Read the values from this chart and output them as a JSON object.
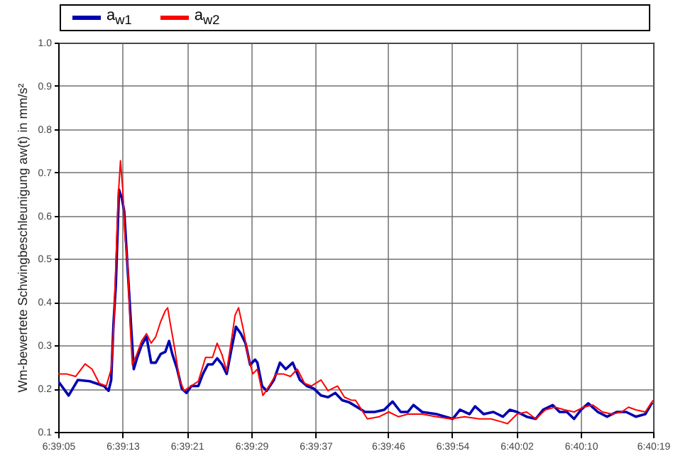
{
  "chart_data": {
    "type": "line",
    "ylabel": "Wm-bewertete Schwingbeschleunigung aw(t) in mm/s²",
    "legend": "top",
    "grid": true,
    "line_style": "solid",
    "marker": "none",
    "xlim": [
      6.65139,
      6.67194
    ],
    "ylim": [
      0.1,
      1.0
    ],
    "yticks": [
      0.1,
      0.2,
      0.3,
      0.4,
      0.5,
      0.6,
      0.7,
      0.8,
      0.9,
      {
        "value": 1.0,
        "label": "1.0"
      }
    ],
    "xticks": [
      {
        "value": 6.65139,
        "label": "6:39:05"
      },
      {
        "value": 6.65361,
        "label": "6:39:13"
      },
      {
        "value": 6.65583,
        "label": "6:39:21"
      },
      {
        "value": 6.65806,
        "label": "6:39:29"
      },
      {
        "value": 6.66028,
        "label": "6:39:37"
      },
      {
        "value": 6.66278,
        "label": "6:39:46"
      },
      {
        "value": 6.665,
        "label": "6:39:54"
      },
      {
        "value": 6.66722,
        "label": "6:40:02"
      },
      {
        "value": 6.66944,
        "label": "6:40:10"
      },
      {
        "value": 6.67194,
        "label": "6:40:19"
      }
    ],
    "series": [
      {
        "name": "a$_{w1}$",
        "color": "#0000b0",
        "x": [
          6.65139,
          6.65175,
          6.65207,
          6.65248,
          6.65297,
          6.65313,
          6.65322,
          6.6533,
          6.65338,
          6.65349,
          6.65359,
          6.65367,
          6.65375,
          6.65384,
          6.65392,
          6.654,
          6.65411,
          6.65427,
          6.65444,
          6.6546,
          6.65476,
          6.65493,
          6.65509,
          6.65522,
          6.65533,
          6.6555,
          6.65566,
          6.65582,
          6.65599,
          6.65623,
          6.65639,
          6.65656,
          6.65672,
          6.65688,
          6.65705,
          6.65721,
          6.65737,
          6.65753,
          6.6577,
          6.65786,
          6.65802,
          6.65819,
          6.65827,
          6.65843,
          6.65859,
          6.65884,
          6.65905,
          6.65925,
          6.65949,
          6.65974,
          6.65998,
          6.66022,
          6.66047,
          6.66071,
          6.66096,
          6.6612,
          6.66145,
          6.66199,
          6.66232,
          6.66265,
          6.66294,
          6.66322,
          6.66347,
          6.66366,
          6.66396,
          6.66445,
          6.66502,
          6.66527,
          6.6656,
          6.66579,
          6.66609,
          6.66642,
          6.66675,
          6.66699,
          6.66724,
          6.66757,
          6.66789,
          6.66814,
          6.66847,
          6.66871,
          6.66896,
          6.66921,
          6.66945,
          6.6697,
          6.67003,
          6.67035,
          6.67068,
          6.67101,
          6.67134,
          6.67167,
          6.67191
        ],
        "values": [
          0.217,
          0.184,
          0.22,
          0.217,
          0.206,
          0.195,
          0.22,
          0.35,
          0.44,
          0.66,
          0.64,
          0.61,
          0.52,
          0.42,
          0.33,
          0.245,
          0.27,
          0.3,
          0.32,
          0.26,
          0.26,
          0.28,
          0.285,
          0.31,
          0.28,
          0.245,
          0.2,
          0.19,
          0.206,
          0.206,
          0.234,
          0.256,
          0.256,
          0.27,
          0.256,
          0.234,
          0.29,
          0.343,
          0.327,
          0.305,
          0.255,
          0.267,
          0.26,
          0.206,
          0.195,
          0.22,
          0.26,
          0.245,
          0.26,
          0.22,
          0.206,
          0.2,
          0.184,
          0.18,
          0.19,
          0.173,
          0.168,
          0.146,
          0.146,
          0.151,
          0.17,
          0.146,
          0.146,
          0.162,
          0.146,
          0.141,
          0.13,
          0.151,
          0.141,
          0.159,
          0.141,
          0.146,
          0.135,
          0.151,
          0.146,
          0.135,
          0.13,
          0.151,
          0.162,
          0.146,
          0.146,
          0.13,
          0.151,
          0.166,
          0.146,
          0.135,
          0.146,
          0.146,
          0.135,
          0.141,
          0.168
        ]
      },
      {
        "name": "a$_{w2}$",
        "color": "#ff0000",
        "x": [
          6.65139,
          6.65167,
          6.65199,
          6.65232,
          6.65256,
          6.65281,
          6.65305,
          6.65322,
          6.6533,
          6.65338,
          6.65346,
          6.65354,
          6.65362,
          6.6537,
          6.65379,
          6.65387,
          6.65395,
          6.65411,
          6.65427,
          6.65444,
          6.6546,
          6.65476,
          6.65493,
          6.65509,
          6.65517,
          6.65525,
          6.65542,
          6.65558,
          6.65574,
          6.65599,
          6.65623,
          6.65648,
          6.65672,
          6.65688,
          6.65705,
          6.65721,
          6.65737,
          6.6575,
          6.65762,
          6.65778,
          6.65794,
          6.65811,
          6.65827,
          6.65846,
          6.65868,
          6.65892,
          6.65916,
          6.65941,
          6.65965,
          6.6599,
          6.66014,
          6.66047,
          6.66071,
          6.66104,
          6.66128,
          6.66153,
          6.66166,
          6.66207,
          6.66248,
          6.66281,
          6.66314,
          6.66347,
          6.66396,
          6.66445,
          6.66494,
          6.66543,
          6.66593,
          6.66634,
          6.66666,
          6.66691,
          6.66724,
          6.66757,
          6.66789,
          6.66822,
          6.66855,
          6.66888,
          6.66921,
          6.66953,
          6.66986,
          6.67019,
          6.67052,
          6.67085,
          6.67109,
          6.67134,
          6.67167,
          6.67194
        ],
        "values": [
          0.234,
          0.234,
          0.228,
          0.257,
          0.245,
          0.212,
          0.206,
          0.245,
          0.33,
          0.485,
          0.64,
          0.727,
          0.66,
          0.55,
          0.485,
          0.355,
          0.255,
          0.28,
          0.31,
          0.327,
          0.305,
          0.32,
          0.355,
          0.38,
          0.387,
          0.355,
          0.29,
          0.22,
          0.195,
          0.206,
          0.217,
          0.272,
          0.272,
          0.305,
          0.278,
          0.24,
          0.31,
          0.37,
          0.387,
          0.338,
          0.278,
          0.234,
          0.245,
          0.184,
          0.206,
          0.234,
          0.234,
          0.228,
          0.245,
          0.212,
          0.206,
          0.22,
          0.195,
          0.206,
          0.18,
          0.173,
          0.173,
          0.13,
          0.135,
          0.146,
          0.135,
          0.141,
          0.141,
          0.135,
          0.13,
          0.135,
          0.13,
          0.13,
          0.124,
          0.119,
          0.141,
          0.146,
          0.13,
          0.151,
          0.157,
          0.151,
          0.146,
          0.157,
          0.162,
          0.146,
          0.141,
          0.146,
          0.157,
          0.151,
          0.146,
          0.173
        ]
      }
    ]
  }
}
